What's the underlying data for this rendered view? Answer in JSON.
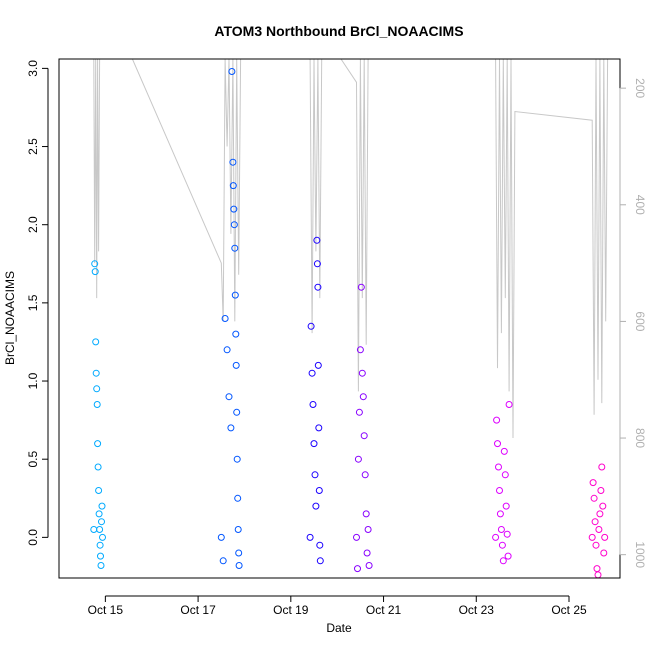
{
  "chart_data": {
    "type": "scatter",
    "title": "ATOM3 Northbound BrCl_NOAACIMS",
    "xlabel": "Date",
    "ylabel": "BrCl_NOAACIMS",
    "y2label": "",
    "xlim": [
      "2017-10-14",
      "2017-10-26.1"
    ],
    "ylim": [
      -0.26,
      3.06
    ],
    "y2lim": [
      1040,
      150
    ],
    "x_ticks": [
      {
        "date": "2017-10-15",
        "label": "Oct 15"
      },
      {
        "date": "2017-10-17",
        "label": "Oct 17"
      },
      {
        "date": "2017-10-19",
        "label": "Oct 19"
      },
      {
        "date": "2017-10-21",
        "label": "Oct 21"
      },
      {
        "date": "2017-10-23",
        "label": "Oct 23"
      },
      {
        "date": "2017-10-25",
        "label": "Oct 25"
      }
    ],
    "y_ticks": [
      0.0,
      0.5,
      1.0,
      1.5,
      2.0,
      2.5,
      3.0
    ],
    "y_tick_labels": [
      "0.0",
      "0.5",
      "1.0",
      "1.5",
      "2.0",
      "2.5",
      "3.0"
    ],
    "y2_ticks": [
      200,
      400,
      600,
      800,
      1000
    ],
    "y2_tick_labels": [
      "200",
      "400",
      "600",
      "800",
      "1000"
    ],
    "grid": false,
    "series": [
      {
        "color": "#00aaff",
        "points": [
          [
            "2017-10-14T18:00",
            0.05
          ],
          [
            "2017-10-14T18:30",
            1.75
          ],
          [
            "2017-10-14T18:45",
            1.7
          ],
          [
            "2017-10-14T19:00",
            1.25
          ],
          [
            "2017-10-14T19:15",
            1.05
          ],
          [
            "2017-10-14T19:30",
            0.95
          ],
          [
            "2017-10-14T19:45",
            0.85
          ],
          [
            "2017-10-14T20:00",
            0.6
          ],
          [
            "2017-10-14T20:15",
            0.45
          ],
          [
            "2017-10-14T20:30",
            0.3
          ],
          [
            "2017-10-14T20:45",
            0.15
          ],
          [
            "2017-10-14T21:00",
            0.05
          ],
          [
            "2017-10-14T21:15",
            -0.05
          ],
          [
            "2017-10-14T21:30",
            -0.12
          ],
          [
            "2017-10-14T21:45",
            -0.18
          ],
          [
            "2017-10-14T22:00",
            0.1
          ],
          [
            "2017-10-14T22:15",
            0.2
          ],
          [
            "2017-10-14T22:30",
            0.0
          ]
        ]
      },
      {
        "color": "#0055ff",
        "points": [
          [
            "2017-10-17T12:00",
            0.0
          ],
          [
            "2017-10-17T13:00",
            -0.15
          ],
          [
            "2017-10-17T14:00",
            1.4
          ],
          [
            "2017-10-17T15:00",
            1.2
          ],
          [
            "2017-10-17T16:00",
            0.9
          ],
          [
            "2017-10-17T17:00",
            0.7
          ],
          [
            "2017-10-17T17:30",
            2.98
          ],
          [
            "2017-10-17T18:00",
            2.4
          ],
          [
            "2017-10-17T18:15",
            2.25
          ],
          [
            "2017-10-17T18:30",
            2.1
          ],
          [
            "2017-10-17T18:45",
            2.0
          ],
          [
            "2017-10-17T19:00",
            1.85
          ],
          [
            "2017-10-17T19:15",
            1.55
          ],
          [
            "2017-10-17T19:30",
            1.3
          ],
          [
            "2017-10-17T19:45",
            1.1
          ],
          [
            "2017-10-17T20:00",
            0.8
          ],
          [
            "2017-10-17T20:15",
            0.5
          ],
          [
            "2017-10-17T20:30",
            0.25
          ],
          [
            "2017-10-17T20:45",
            0.05
          ],
          [
            "2017-10-17T21:00",
            -0.1
          ],
          [
            "2017-10-17T21:15",
            -0.18
          ]
        ]
      },
      {
        "color": "#1a00ff",
        "points": [
          [
            "2017-10-19T10:00",
            0.0
          ],
          [
            "2017-10-19T10:30",
            1.35
          ],
          [
            "2017-10-19T11:00",
            1.05
          ],
          [
            "2017-10-19T11:30",
            0.85
          ],
          [
            "2017-10-19T12:00",
            0.6
          ],
          [
            "2017-10-19T12:30",
            0.4
          ],
          [
            "2017-10-19T13:00",
            0.2
          ],
          [
            "2017-10-19T13:30",
            1.9
          ],
          [
            "2017-10-19T13:45",
            1.75
          ],
          [
            "2017-10-19T14:00",
            1.6
          ],
          [
            "2017-10-19T14:15",
            1.1
          ],
          [
            "2017-10-19T14:30",
            0.7
          ],
          [
            "2017-10-19T14:45",
            0.3
          ],
          [
            "2017-10-19T15:00",
            -0.05
          ],
          [
            "2017-10-19T15:15",
            -0.15
          ]
        ]
      },
      {
        "color": "#8800ff",
        "points": [
          [
            "2017-10-20T10:00",
            0.0
          ],
          [
            "2017-10-20T10:30",
            -0.2
          ],
          [
            "2017-10-20T11:00",
            0.5
          ],
          [
            "2017-10-20T11:30",
            0.8
          ],
          [
            "2017-10-20T12:00",
            1.2
          ],
          [
            "2017-10-20T12:30",
            1.6
          ],
          [
            "2017-10-20T13:00",
            1.05
          ],
          [
            "2017-10-20T13:30",
            0.9
          ],
          [
            "2017-10-20T14:00",
            0.65
          ],
          [
            "2017-10-20T14:30",
            0.4
          ],
          [
            "2017-10-20T15:00",
            0.15
          ],
          [
            "2017-10-20T15:30",
            -0.1
          ],
          [
            "2017-10-20T16:00",
            0.05
          ],
          [
            "2017-10-20T16:30",
            -0.18
          ]
        ]
      },
      {
        "color": "#dd00ff",
        "points": [
          [
            "2017-10-23T10:00",
            0.0
          ],
          [
            "2017-10-23T10:30",
            0.75
          ],
          [
            "2017-10-23T11:00",
            0.6
          ],
          [
            "2017-10-23T11:30",
            0.45
          ],
          [
            "2017-10-23T12:00",
            0.3
          ],
          [
            "2017-10-23T12:30",
            0.15
          ],
          [
            "2017-10-23T13:00",
            0.05
          ],
          [
            "2017-10-23T13:30",
            -0.05
          ],
          [
            "2017-10-23T14:00",
            -0.15
          ],
          [
            "2017-10-23T14:30",
            0.55
          ],
          [
            "2017-10-23T15:00",
            0.4
          ],
          [
            "2017-10-23T15:30",
            0.2
          ],
          [
            "2017-10-23T16:00",
            0.02
          ],
          [
            "2017-10-23T16:30",
            -0.12
          ],
          [
            "2017-10-23T17:00",
            0.85
          ]
        ]
      },
      {
        "color": "#ff00cc",
        "points": [
          [
            "2017-10-25T12:00",
            0.0
          ],
          [
            "2017-10-25T12:30",
            0.35
          ],
          [
            "2017-10-25T13:00",
            0.25
          ],
          [
            "2017-10-25T13:30",
            0.1
          ],
          [
            "2017-10-25T14:00",
            -0.05
          ],
          [
            "2017-10-25T14:30",
            -0.2
          ],
          [
            "2017-10-25T15:00",
            -0.24
          ],
          [
            "2017-10-25T15:30",
            0.05
          ],
          [
            "2017-10-25T16:00",
            0.15
          ],
          [
            "2017-10-25T16:30",
            0.3
          ],
          [
            "2017-10-25T17:00",
            0.45
          ],
          [
            "2017-10-25T17:30",
            0.2
          ],
          [
            "2017-10-25T18:00",
            -0.1
          ],
          [
            "2017-10-25T18:30",
            0.0
          ]
        ]
      }
    ],
    "pressure_trace": {
      "color": "#c8c8c8",
      "axis": "right",
      "points": [
        [
          "2017-10-14T18:00",
          150
        ],
        [
          "2017-10-14T18:30",
          500
        ],
        [
          "2017-10-14T19:00",
          150
        ],
        [
          "2017-10-14T19:30",
          560
        ],
        [
          "2017-10-14T20:00",
          150
        ],
        [
          "2017-10-14T20:30",
          480
        ],
        [
          "2017-10-14T21:00",
          150
        ],
        [
          "2017-10-15T14:00",
          150
        ],
        [
          "2017-10-17T12:00",
          500
        ],
        [
          "2017-10-17T13:00",
          600
        ],
        [
          "2017-10-17T14:00",
          150
        ],
        [
          "2017-10-17T15:00",
          300
        ],
        [
          "2017-10-17T16:00",
          150
        ],
        [
          "2017-10-17T17:00",
          450
        ],
        [
          "2017-10-17T18:00",
          150
        ],
        [
          "2017-10-17T19:00",
          600
        ],
        [
          "2017-10-17T20:00",
          150
        ],
        [
          "2017-10-17T21:00",
          520
        ],
        [
          "2017-10-17T22:00",
          150
        ],
        [
          "2017-10-19T10:00",
          150
        ],
        [
          "2017-10-19T11:00",
          620
        ],
        [
          "2017-10-19T12:00",
          150
        ],
        [
          "2017-10-19T13:00",
          480
        ],
        [
          "2017-10-19T14:00",
          150
        ],
        [
          "2017-10-19T15:00",
          560
        ],
        [
          "2017-10-19T16:00",
          150
        ],
        [
          "2017-10-20T02:00",
          150
        ],
        [
          "2017-10-20T10:00",
          190
        ],
        [
          "2017-10-20T11:00",
          720
        ],
        [
          "2017-10-20T12:00",
          150
        ],
        [
          "2017-10-20T13:00",
          560
        ],
        [
          "2017-10-20T14:00",
          150
        ],
        [
          "2017-10-20T15:00",
          640
        ],
        [
          "2017-10-20T16:00",
          150
        ],
        [
          "2017-10-23T10:00",
          150
        ],
        [
          "2017-10-23T11:00",
          680
        ],
        [
          "2017-10-23T12:00",
          150
        ],
        [
          "2017-10-23T13:00",
          620
        ],
        [
          "2017-10-23T14:00",
          150
        ],
        [
          "2017-10-23T15:00",
          560
        ],
        [
          "2017-10-23T16:00",
          150
        ],
        [
          "2017-10-23T17:00",
          720
        ],
        [
          "2017-10-23T18:00",
          150
        ],
        [
          "2017-10-23T19:00",
          800
        ],
        [
          "2017-10-23T20:00",
          240
        ],
        [
          "2017-10-25T12:00",
          255
        ],
        [
          "2017-10-25T13:00",
          760
        ],
        [
          "2017-10-25T14:00",
          150
        ],
        [
          "2017-10-25T15:00",
          700
        ],
        [
          "2017-10-25T16:00",
          150
        ],
        [
          "2017-10-25T17:00",
          740
        ],
        [
          "2017-10-25T18:00",
          150
        ],
        [
          "2017-10-25T19:00",
          600
        ],
        [
          "2017-10-25T20:00",
          150
        ]
      ]
    }
  },
  "colors": {
    "pressure_trace": "#c8c8c8",
    "right_axis": "#b0b0b0"
  }
}
